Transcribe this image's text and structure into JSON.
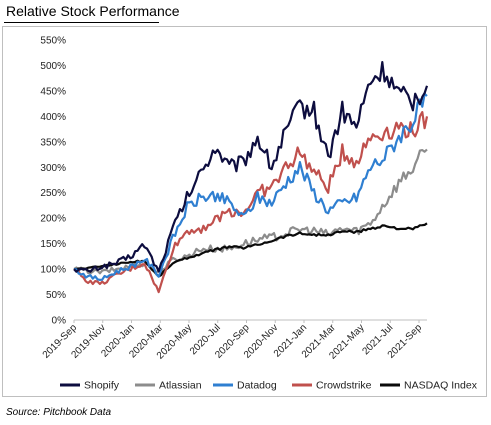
{
  "title": "Relative Stock Performance",
  "source": "Source: Pitchbook Data",
  "chart_data": {
    "type": "line",
    "y_ticks": [
      "0%",
      "50%",
      "100%",
      "150%",
      "200%",
      "250%",
      "300%",
      "350%",
      "400%",
      "450%",
      "500%",
      "550%"
    ],
    "ylim": [
      0,
      550
    ],
    "x_ticks": [
      "2019-Sep",
      "2019-Nov",
      "2020-Jan",
      "2020-Mar",
      "2020-May",
      "2020-Jul",
      "2020-Sep",
      "2020-Nov",
      "2021-Jan",
      "2021-Mar",
      "2021-May",
      "2021-Jul",
      "2021-Sep"
    ],
    "x": [
      "2019-Sep",
      "2019-Oct",
      "2019-Nov",
      "2019-Dec",
      "2020-Jan",
      "2020-Feb",
      "2020-Mar",
      "2020-Apr",
      "2020-May",
      "2020-Jun",
      "2020-Jul",
      "2020-Aug",
      "2020-Sep",
      "2020-Oct",
      "2020-Nov",
      "2020-Dec",
      "2021-Jan",
      "2021-Feb",
      "2021-Mar",
      "2021-Apr",
      "2021-May",
      "2021-Jun",
      "2021-Jul",
      "2021-Aug",
      "2021-Sep",
      "2021-Oct"
    ],
    "grid": false,
    "legend_position": "bottom",
    "series": [
      {
        "name": "Shopify",
        "color": "#0d0d3f",
        "values": [
          100,
          96,
          105,
          112,
          125,
          148,
          95,
          180,
          240,
          290,
          340,
          300,
          310,
          360,
          300,
          370,
          420,
          410,
          320,
          410,
          380,
          470,
          490,
          440,
          430,
          460
        ]
      },
      {
        "name": "Atlassian",
        "color": "#8c8c8c",
        "values": [
          100,
          96,
          94,
          100,
          105,
          112,
          92,
          118,
          125,
          140,
          140,
          140,
          150,
          158,
          162,
          170,
          178,
          175,
          168,
          180,
          175,
          190,
          230,
          270,
          300,
          335
        ]
      },
      {
        "name": "Datadog",
        "color": "#2f7fd1",
        "values": [
          100,
          85,
          80,
          95,
          105,
          120,
          88,
          160,
          220,
          240,
          245,
          230,
          200,
          240,
          230,
          270,
          300,
          250,
          215,
          230,
          240,
          300,
          320,
          360,
          390,
          440
        ]
      },
      {
        "name": "Crowdstrike",
        "color": "#c0504d",
        "values": [
          100,
          75,
          72,
          88,
          100,
          112,
          55,
          140,
          175,
          180,
          195,
          215,
          210,
          250,
          260,
          300,
          330,
          290,
          260,
          330,
          310,
          360,
          370,
          380,
          370,
          400
        ]
      },
      {
        "name": "NASDAQ Index",
        "color": "#0a0a0a",
        "values": [
          100,
          102,
          106,
          110,
          114,
          116,
          85,
          112,
          122,
          130,
          138,
          144,
          142,
          148,
          156,
          165,
          170,
          168,
          166,
          175,
          172,
          180,
          185,
          180,
          178,
          190
        ]
      }
    ]
  }
}
